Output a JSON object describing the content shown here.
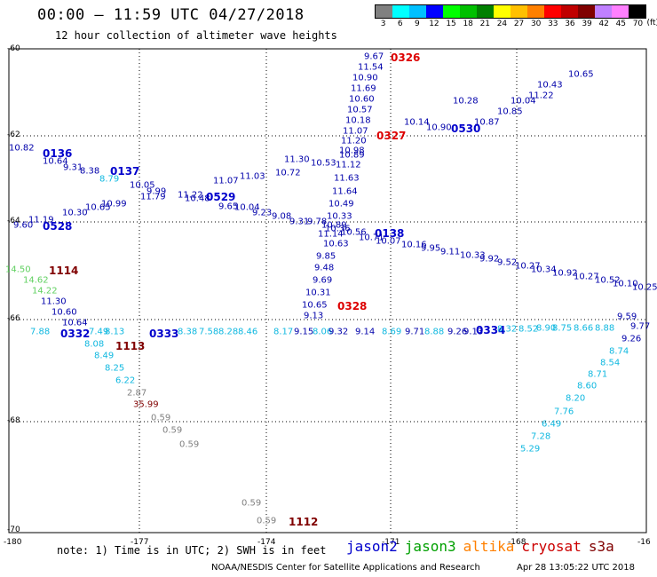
{
  "header": {
    "title": "00:00 – 11:59 UTC 04/27/2018",
    "subtitle": "12 hour collection of altimeter wave heights"
  },
  "legend": {
    "colors": [
      "#808080",
      "#00ffff",
      "#00c0ff",
      "#0000ff",
      "#00ff00",
      "#00c000",
      "#008000",
      "#ffff00",
      "#ffc000",
      "#ff8000",
      "#ff0000",
      "#c00000",
      "#800000",
      "#c080ff",
      "#ff80ff",
      "#000000"
    ],
    "labels": [
      "3",
      "6",
      "9",
      "12",
      "15",
      "18",
      "21",
      "24",
      "27",
      "30",
      "33",
      "36",
      "39",
      "42",
      "45",
      "70"
    ],
    "unit": "(ft)"
  },
  "y_ticks": [
    "-60",
    "-62",
    "-64",
    "-66",
    "-68",
    "-70"
  ],
  "x_ticks": [
    "-180",
    "-177",
    "-174",
    "-171",
    "-168",
    "-16"
  ],
  "footer": {
    "note": "note: 1) Time is in UTC; 2) SWH is in feet",
    "satellites": [
      {
        "name": "jason2",
        "color": "#0000cc"
      },
      {
        "name": "jason3",
        "color": "#00a000"
      },
      {
        "name": "altika",
        "color": "#ff8000"
      },
      {
        "name": "cryosat",
        "color": "#cc0000"
      },
      {
        "name": "s3a",
        "color": "#800000"
      }
    ],
    "credit": "NOAA/NESDIS Center for Satellite Applications and Research",
    "timestamp": "Apr 28 13:05:22 UTC 2018"
  },
  "palette": {
    "navy": "#0000aa",
    "blue": "#0000cc",
    "cyan": "#10b8e0",
    "green": "#60d060",
    "maroon": "#800000",
    "red": "#dd0000",
    "gray": "#808080"
  },
  "plot": {
    "labels": [
      {
        "t": "9.67",
        "c": "navy"
      },
      {
        "t": "0326",
        "c": "red",
        "b": 1
      },
      {
        "t": "11.54",
        "c": "navy"
      },
      {
        "t": "10.90",
        "c": "navy"
      },
      {
        "t": "11.69",
        "c": "navy"
      },
      {
        "t": "10.60",
        "c": "navy"
      },
      {
        "t": "10.57",
        "c": "navy"
      },
      {
        "t": "10.18",
        "c": "navy"
      },
      {
        "t": "11.07",
        "c": "navy"
      },
      {
        "t": "11.20",
        "c": "navy"
      },
      {
        "t": "0327",
        "c": "red",
        "b": 1
      },
      {
        "t": "10.98",
        "c": "navy"
      },
      {
        "t": "11.12",
        "c": "navy"
      },
      {
        "t": "11.63",
        "c": "navy"
      },
      {
        "t": "11.64",
        "c": "navy"
      },
      {
        "t": "10.49",
        "c": "navy"
      },
      {
        "t": "10.33",
        "c": "navy"
      },
      {
        "t": "10.36",
        "c": "navy"
      },
      {
        "t": "10.63",
        "c": "navy"
      },
      {
        "t": "9.85",
        "c": "navy"
      },
      {
        "t": "9.48",
        "c": "navy"
      },
      {
        "t": "9.69",
        "c": "navy"
      },
      {
        "t": "10.31",
        "c": "navy"
      },
      {
        "t": "10.65",
        "c": "navy"
      },
      {
        "t": "0328",
        "c": "red",
        "b": 1
      },
      {
        "t": "9.13",
        "c": "navy"
      },
      {
        "t": "10.65",
        "c": "navy"
      },
      {
        "t": "10.43",
        "c": "navy"
      },
      {
        "t": "11.22",
        "c": "navy"
      },
      {
        "t": "10.04",
        "c": "navy"
      },
      {
        "t": "10.85",
        "c": "navy"
      },
      {
        "t": "10.87",
        "c": "navy"
      },
      {
        "t": "0530",
        "c": "blue",
        "b": 1
      },
      {
        "t": "10.90",
        "c": "navy"
      },
      {
        "t": "10.14",
        "c": "navy"
      },
      {
        "t": "10.28",
        "c": "navy"
      },
      {
        "t": "10.82",
        "c": "navy"
      },
      {
        "t": "0136",
        "c": "blue",
        "b": 1
      },
      {
        "t": "10.64",
        "c": "navy"
      },
      {
        "t": "9.31",
        "c": "navy"
      },
      {
        "t": "8.38",
        "c": "navy"
      },
      {
        "t": "0137",
        "c": "blue",
        "b": 1
      },
      {
        "t": "8.79",
        "c": "cyan"
      },
      {
        "t": "10.05",
        "c": "navy"
      },
      {
        "t": "9.99",
        "c": "navy"
      },
      {
        "t": "11.22",
        "c": "navy"
      },
      {
        "t": "0529",
        "c": "blue",
        "b": 1
      },
      {
        "t": "10.48",
        "c": "navy"
      },
      {
        "t": "9.65",
        "c": "navy"
      },
      {
        "t": "11.07",
        "c": "navy"
      },
      {
        "t": "11.03",
        "c": "navy"
      },
      {
        "t": "10.72",
        "c": "navy"
      },
      {
        "t": "10.53",
        "c": "navy"
      },
      {
        "t": "11.30",
        "c": "navy"
      },
      {
        "t": "10.89",
        "c": "navy"
      },
      {
        "t": "9.60",
        "c": "navy"
      },
      {
        "t": "0528",
        "c": "blue",
        "b": 1
      },
      {
        "t": "11.19",
        "c": "navy"
      },
      {
        "t": "10.30",
        "c": "navy"
      },
      {
        "t": "10.65",
        "c": "navy"
      },
      {
        "t": "10.99",
        "c": "navy"
      },
      {
        "t": "11.79",
        "c": "navy"
      },
      {
        "t": "10.04",
        "c": "navy"
      },
      {
        "t": "9.23",
        "c": "navy"
      },
      {
        "t": "9.08",
        "c": "navy"
      },
      {
        "t": "9.31",
        "c": "navy"
      },
      {
        "t": "9.78",
        "c": "navy"
      },
      {
        "t": "10.89",
        "c": "navy"
      },
      {
        "t": "11.14",
        "c": "navy"
      },
      {
        "t": "10.56",
        "c": "navy"
      },
      {
        "t": "0138",
        "c": "blue",
        "b": 1
      },
      {
        "t": "10.71",
        "c": "navy"
      },
      {
        "t": "10.07",
        "c": "navy"
      },
      {
        "t": "10.16",
        "c": "navy"
      },
      {
        "t": "9.95",
        "c": "navy"
      },
      {
        "t": "9.11",
        "c": "navy"
      },
      {
        "t": "10.33",
        "c": "navy"
      },
      {
        "t": "9.92",
        "c": "navy"
      },
      {
        "t": "9.52",
        "c": "navy"
      },
      {
        "t": "10.27",
        "c": "navy"
      },
      {
        "t": "10.34",
        "c": "navy"
      },
      {
        "t": "10.92",
        "c": "navy"
      },
      {
        "t": "10.27",
        "c": "navy"
      },
      {
        "t": "10.52",
        "c": "navy"
      },
      {
        "t": "10.10",
        "c": "navy"
      },
      {
        "t": "10.25",
        "c": "navy"
      },
      {
        "t": "14.50",
        "c": "green"
      },
      {
        "t": "1114",
        "c": "maroon",
        "b": 1
      },
      {
        "t": "14.62",
        "c": "green"
      },
      {
        "t": "14.22",
        "c": "green"
      },
      {
        "t": "11.30",
        "c": "navy"
      },
      {
        "t": "10.60",
        "c": "navy"
      },
      {
        "t": "10.64",
        "c": "navy"
      },
      {
        "t": "0332",
        "c": "blue",
        "b": 1
      },
      {
        "t": "0333",
        "c": "blue",
        "b": 1
      },
      {
        "t": "1113",
        "c": "maroon",
        "b": 1
      },
      {
        "t": "8.08",
        "c": "cyan"
      },
      {
        "t": "8.49",
        "c": "cyan"
      },
      {
        "t": "8.25",
        "c": "cyan"
      },
      {
        "t": "6.22",
        "c": "cyan"
      },
      {
        "t": "2.87",
        "c": "gray"
      },
      {
        "t": "35.99",
        "c": "maroon"
      },
      {
        "t": "0.59",
        "c": "gray"
      },
      {
        "t": "0.59",
        "c": "gray"
      },
      {
        "t": "0.59",
        "c": "gray"
      },
      {
        "t": "0.59",
        "c": "gray"
      },
      {
        "t": "0.59",
        "c": "gray"
      },
      {
        "t": "1112",
        "c": "maroon",
        "b": 1
      },
      {
        "t": "7.88",
        "c": "cyan"
      },
      {
        "t": "7.49",
        "c": "cyan"
      },
      {
        "t": "8.13",
        "c": "cyan"
      },
      {
        "t": "8.38",
        "c": "cyan"
      },
      {
        "t": "7.58",
        "c": "cyan"
      },
      {
        "t": "8.28",
        "c": "cyan"
      },
      {
        "t": "8.46",
        "c": "cyan"
      },
      {
        "t": "8.17",
        "c": "cyan"
      },
      {
        "t": "9.15",
        "c": "navy"
      },
      {
        "t": "8.06",
        "c": "cyan"
      },
      {
        "t": "9.32",
        "c": "navy"
      },
      {
        "t": "9.14",
        "c": "navy"
      },
      {
        "t": "8.69",
        "c": "cyan"
      },
      {
        "t": "9.71",
        "c": "navy"
      },
      {
        "t": "8.88",
        "c": "cyan"
      },
      {
        "t": "9.26",
        "c": "navy"
      },
      {
        "t": "9.13",
        "c": "navy"
      },
      {
        "t": "0334",
        "c": "blue",
        "b": 1
      },
      {
        "t": "8.32",
        "c": "cyan"
      },
      {
        "t": "8.52",
        "c": "cyan"
      },
      {
        "t": "8.90",
        "c": "cyan"
      },
      {
        "t": "8.75",
        "c": "cyan"
      },
      {
        "t": "8.66",
        "c": "cyan"
      },
      {
        "t": "8.88",
        "c": "cyan"
      },
      {
        "t": "9.59",
        "c": "navy"
      },
      {
        "t": "9.77",
        "c": "navy"
      },
      {
        "t": "9.26",
        "c": "navy"
      },
      {
        "t": "8.74",
        "c": "cyan"
      },
      {
        "t": "8.54",
        "c": "cyan"
      },
      {
        "t": "8.71",
        "c": "cyan"
      },
      {
        "t": "8.60",
        "c": "cyan"
      },
      {
        "t": "8.20",
        "c": "cyan"
      },
      {
        "t": "7.76",
        "c": "cyan"
      },
      {
        "t": "6.49",
        "c": "cyan"
      },
      {
        "t": "7.28",
        "c": "cyan"
      },
      {
        "t": "5.29",
        "c": "cyan"
      }
    ]
  }
}
